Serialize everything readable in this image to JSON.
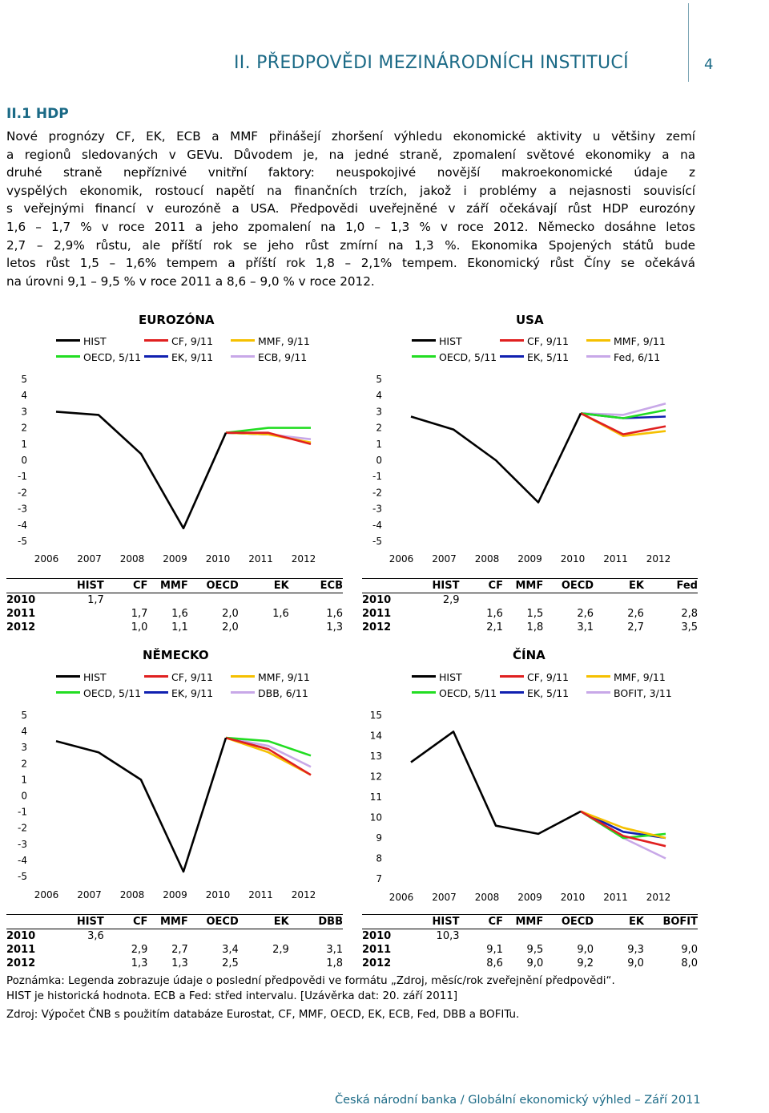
{
  "header": {
    "title": "II. PŘEDPOVĚDI MEZINÁRODNÍCH INSTITUCÍ",
    "page": "4"
  },
  "section": {
    "title": "II.1 HDP"
  },
  "paragraph": [
    "Nové prognózy CF, EK, ECB a MMF přinášejí zhoršení výhledu ekonomické aktivity u většiny zemí",
    "a regionů sledovaných v GEVu. Důvodem je, na jedné straně, zpomalení světové ekonomiky a na",
    "druhé straně nepříznivé vnitřní faktory: neuspokojivé novější makroekonomické údaje z",
    "vyspělých ekonomik, rostoucí napětí na finančních trzích, jakož i problémy a nejasnosti souvisící",
    "s veřejnými financí v eurozóně a USA. Předpovědi uveřejněné v září očekávají růst HDP eurozóny",
    "1,6 – 1,7 % v roce 2011 a jeho zpomalení na 1,0 – 1,3 % v roce 2012. Německo dosáhne letos",
    "2,7 – 2,9% růstu, ale příští rok se jeho růst zmírní na 1,3 %. Ekonomika Spojených států bude",
    "letos růst 1,5 – 1,6% tempem a příští rok 1,8 – 2,1% tempem. Ekonomický růst Číny se očekává",
    "na úrovni 9,1 – 9,5 % v roce 2011 a 8,6 – 9,0 % v roce 2012."
  ],
  "chart_data": [
    {
      "type": "line",
      "title": "EUROZÓNA",
      "x": [
        "2006",
        "2007",
        "2008",
        "2009",
        "2010",
        "2011",
        "2012"
      ],
      "ylim": [
        -5,
        5
      ],
      "yticks": [
        "5",
        "4",
        "3",
        "2",
        "1",
        "0",
        "-1",
        "-2",
        "-3",
        "-4",
        "-5"
      ],
      "legend": [
        "HIST",
        "CF, 9/11",
        "MMF, 9/11",
        "OECD, 5/11",
        "EK, 9/11",
        "ECB, 9/11"
      ],
      "series": [
        {
          "name": "HIST",
          "color": "#000000",
          "x": [
            "2006",
            "2007",
            "2008",
            "2009",
            "2010"
          ],
          "values": [
            3.0,
            2.8,
            0.4,
            -4.2,
            1.7
          ]
        },
        {
          "name": "CF, 9/11",
          "color": "#e02020",
          "x": [
            "2010",
            "2011",
            "2012"
          ],
          "values": [
            1.7,
            1.7,
            1.0
          ]
        },
        {
          "name": "MMF, 9/11",
          "color": "#f5c000",
          "x": [
            "2010",
            "2011",
            "2012"
          ],
          "values": [
            1.7,
            1.6,
            1.1
          ]
        },
        {
          "name": "OECD, 5/11",
          "color": "#22dd22",
          "x": [
            "2010",
            "2011",
            "2012"
          ],
          "values": [
            1.7,
            2.0,
            2.0
          ]
        },
        {
          "name": "EK, 9/11",
          "color": "#1020b0",
          "x": [
            "2010",
            "2011"
          ],
          "values": [
            1.7,
            1.6
          ]
        },
        {
          "name": "ECB, 9/11",
          "color": "#c8a8e8",
          "x": [
            "2010",
            "2011",
            "2012"
          ],
          "values": [
            1.7,
            1.6,
            1.3
          ]
        }
      ]
    },
    {
      "type": "line",
      "title": "USA",
      "x": [
        "2006",
        "2007",
        "2008",
        "2009",
        "2010",
        "2011",
        "2012"
      ],
      "ylim": [
        -5,
        5
      ],
      "yticks": [
        "5",
        "4",
        "3",
        "2",
        "1",
        "0",
        "-1",
        "-2",
        "-3",
        "-4",
        "-5"
      ],
      "legend": [
        "HIST",
        "CF, 9/11",
        "MMF, 9/11",
        "OECD, 5/11",
        "EK, 5/11",
        "Fed, 6/11"
      ],
      "series": [
        {
          "name": "HIST",
          "color": "#000000",
          "x": [
            "2006",
            "2007",
            "2008",
            "2009",
            "2010"
          ],
          "values": [
            2.7,
            1.9,
            0.0,
            -2.6,
            2.9
          ]
        },
        {
          "name": "CF, 9/11",
          "color": "#e02020",
          "x": [
            "2010",
            "2011",
            "2012"
          ],
          "values": [
            2.9,
            1.6,
            2.1
          ]
        },
        {
          "name": "MMF, 9/11",
          "color": "#f5c000",
          "x": [
            "2010",
            "2011",
            "2012"
          ],
          "values": [
            2.9,
            1.5,
            1.8
          ]
        },
        {
          "name": "OECD, 5/11",
          "color": "#22dd22",
          "x": [
            "2010",
            "2011",
            "2012"
          ],
          "values": [
            2.9,
            2.6,
            3.1
          ]
        },
        {
          "name": "EK, 5/11",
          "color": "#1020b0",
          "x": [
            "2010",
            "2011",
            "2012"
          ],
          "values": [
            2.9,
            2.6,
            2.7
          ]
        },
        {
          "name": "Fed, 6/11",
          "color": "#c8a8e8",
          "x": [
            "2010",
            "2011",
            "2012"
          ],
          "values": [
            2.9,
            2.8,
            3.5
          ]
        }
      ]
    },
    {
      "type": "line",
      "title": "NĚMECKO",
      "x": [
        "2006",
        "2007",
        "2008",
        "2009",
        "2010",
        "2011",
        "2012"
      ],
      "ylim": [
        -5,
        5
      ],
      "yticks": [
        "5",
        "4",
        "3",
        "2",
        "1",
        "0",
        "-1",
        "-2",
        "-3",
        "-4",
        "-5"
      ],
      "legend": [
        "HIST",
        "CF, 9/11",
        "MMF, 9/11",
        "OECD, 5/11",
        "EK, 9/11",
        "DBB, 6/11"
      ],
      "series": [
        {
          "name": "HIST",
          "color": "#000000",
          "x": [
            "2006",
            "2007",
            "2008",
            "2009",
            "2010"
          ],
          "values": [
            3.4,
            2.7,
            1.0,
            -4.7,
            3.6
          ]
        },
        {
          "name": "CF, 9/11",
          "color": "#e02020",
          "x": [
            "2010",
            "2011",
            "2012"
          ],
          "values": [
            3.6,
            2.9,
            1.3
          ]
        },
        {
          "name": "MMF, 9/11",
          "color": "#f5c000",
          "x": [
            "2010",
            "2011",
            "2012"
          ],
          "values": [
            3.6,
            2.7,
            1.3
          ]
        },
        {
          "name": "OECD, 5/11",
          "color": "#22dd22",
          "x": [
            "2010",
            "2011",
            "2012"
          ],
          "values": [
            3.6,
            3.4,
            2.5
          ]
        },
        {
          "name": "EK, 9/11",
          "color": "#1020b0",
          "x": [
            "2010",
            "2011"
          ],
          "values": [
            3.6,
            2.9
          ]
        },
        {
          "name": "DBB, 6/11",
          "color": "#c8a8e8",
          "x": [
            "2010",
            "2011",
            "2012"
          ],
          "values": [
            3.6,
            3.1,
            1.8
          ]
        }
      ]
    },
    {
      "type": "line",
      "title": "ČÍNA",
      "x": [
        "2006",
        "2007",
        "2008",
        "2009",
        "2010",
        "2011",
        "2012"
      ],
      "ylim": [
        7,
        15
      ],
      "yticks": [
        "15",
        "14",
        "13",
        "12",
        "11",
        "10",
        "9",
        "8",
        "7"
      ],
      "legend": [
        "HIST",
        "CF, 9/11",
        "MMF, 9/11",
        "OECD, 5/11",
        "EK, 5/11",
        "BOFIT, 3/11"
      ],
      "series": [
        {
          "name": "HIST",
          "color": "#000000",
          "x": [
            "2006",
            "2007",
            "2008",
            "2009",
            "2010"
          ],
          "values": [
            12.7,
            14.2,
            9.6,
            9.2,
            10.3
          ]
        },
        {
          "name": "CF, 9/11",
          "color": "#e02020",
          "x": [
            "2010",
            "2011",
            "2012"
          ],
          "values": [
            10.3,
            9.1,
            8.6
          ]
        },
        {
          "name": "MMF, 9/11",
          "color": "#f5c000",
          "x": [
            "2010",
            "2011",
            "2012"
          ],
          "values": [
            10.3,
            9.5,
            9.0
          ]
        },
        {
          "name": "OECD, 5/11",
          "color": "#22dd22",
          "x": [
            "2010",
            "2011",
            "2012"
          ],
          "values": [
            10.3,
            9.0,
            9.2
          ]
        },
        {
          "name": "EK, 5/11",
          "color": "#1020b0",
          "x": [
            "2010",
            "2011",
            "2012"
          ],
          "values": [
            10.3,
            9.3,
            9.0
          ]
        },
        {
          "name": "BOFIT, 3/11",
          "color": "#c8a8e8",
          "x": [
            "2010",
            "2011",
            "2012"
          ],
          "values": [
            10.3,
            9.0,
            8.0
          ]
        }
      ]
    }
  ],
  "tables": [
    {
      "headers": [
        "",
        "HIST",
        "CF",
        "MMF",
        "OECD",
        "EK",
        "ECB"
      ],
      "rows": [
        [
          "2010",
          "1,7",
          "",
          "",
          "",
          "",
          ""
        ],
        [
          "2011",
          "",
          "1,7",
          "1,6",
          "2,0",
          "1,6",
          "1,6"
        ],
        [
          "2012",
          "",
          "1,0",
          "1,1",
          "2,0",
          "",
          "1,3"
        ]
      ]
    },
    {
      "headers": [
        "",
        "HIST",
        "CF",
        "MMF",
        "OECD",
        "EK",
        "Fed"
      ],
      "rows": [
        [
          "2010",
          "2,9",
          "",
          "",
          "",
          "",
          ""
        ],
        [
          "2011",
          "",
          "1,6",
          "1,5",
          "2,6",
          "2,6",
          "2,8"
        ],
        [
          "2012",
          "",
          "2,1",
          "1,8",
          "3,1",
          "2,7",
          "3,5"
        ]
      ]
    },
    {
      "headers": [
        "",
        "HIST",
        "CF",
        "MMF",
        "OECD",
        "EK",
        "DBB"
      ],
      "rows": [
        [
          "2010",
          "3,6",
          "",
          "",
          "",
          "",
          ""
        ],
        [
          "2011",
          "",
          "2,9",
          "2,7",
          "3,4",
          "2,9",
          "3,1"
        ],
        [
          "2012",
          "",
          "1,3",
          "1,3",
          "2,5",
          "",
          "1,8"
        ]
      ]
    },
    {
      "headers": [
        "",
        "HIST",
        "CF",
        "MMF",
        "OECD",
        "EK",
        "BOFIT"
      ],
      "rows": [
        [
          "2010",
          "10,3",
          "",
          "",
          "",
          "",
          ""
        ],
        [
          "2011",
          "",
          "9,1",
          "9,5",
          "9,0",
          "9,3",
          "9,0"
        ],
        [
          "2012",
          "",
          "8,6",
          "9,0",
          "9,2",
          "9,0",
          "8,0"
        ]
      ]
    }
  ],
  "notes": {
    "line1": "Poznámka: Legenda zobrazuje údaje o poslední předpovědi ve formátu „Zdroj, měsíc/rok zveřejnění předpovědi“.",
    "line2": "HIST je historická hodnota. ECB a Fed: střed intervalu. [Uzávěrka dat: 20. září 2011]",
    "source": "Zdroj: Výpočet ČNB s použitím databáze Eurostat, CF, MMF, OECD, EK, ECB, Fed, DBB a BOFITu."
  },
  "footer": "Česká národní banka / Globální ekonomický výhled – Září 2011"
}
